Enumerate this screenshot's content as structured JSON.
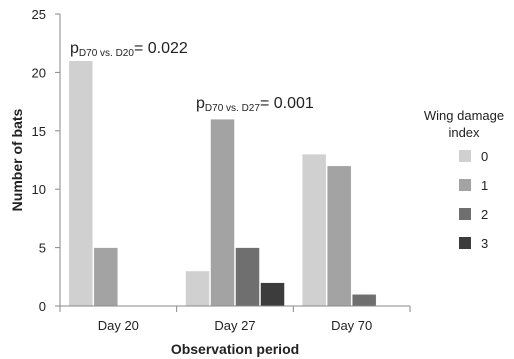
{
  "chart_data": {
    "type": "bar",
    "categories": [
      "Day 20",
      "Day 27",
      "Day 70"
    ],
    "series": [
      {
        "name": "0",
        "color": "#d0d0d0",
        "values": [
          21,
          3,
          13
        ]
      },
      {
        "name": "1",
        "color": "#a3a3a3",
        "values": [
          5,
          16,
          12
        ]
      },
      {
        "name": "2",
        "color": "#6f6f6f",
        "values": [
          0,
          5,
          1
        ]
      },
      {
        "name": "3",
        "color": "#3c3c3c",
        "values": [
          0,
          2,
          0
        ]
      }
    ],
    "xlabel": "Observation period",
    "ylabel": "Number of bats",
    "ylim": [
      0,
      25
    ],
    "yticks": [
      "0",
      "5",
      "10",
      "15",
      "20",
      "25"
    ],
    "grid": false,
    "legend": {
      "title_line1": "Wing damage",
      "title_line2": "index",
      "placement": "right"
    },
    "annotations": [
      {
        "p": "p",
        "sub": "D70 vs. D20",
        "value": "= 0.022"
      },
      {
        "p": "p",
        "sub": "D70 vs. D27",
        "value": "= 0.001"
      }
    ]
  }
}
